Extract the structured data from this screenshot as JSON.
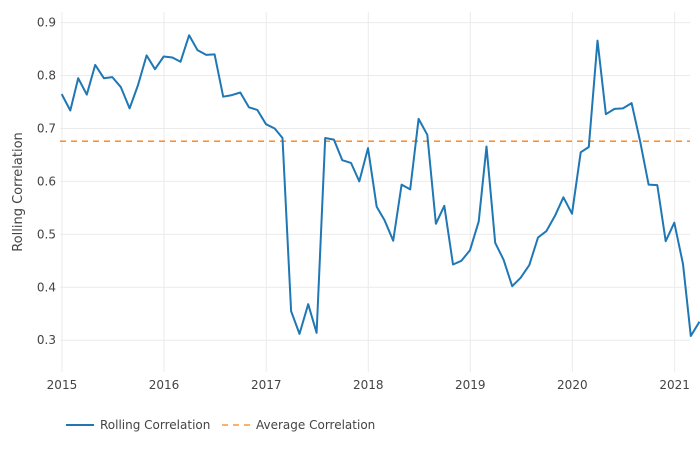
{
  "chart_data": {
    "type": "line",
    "ylabel": "Rolling Correlation",
    "xlabel": "",
    "xlim": [
      "2014-12-25",
      "2021-02-25"
    ],
    "ylim": [
      0.24,
      0.92
    ],
    "grid": true,
    "legend_position": "bottom-left",
    "x_ticks": [
      "2015",
      "2016",
      "2017",
      "2018",
      "2019",
      "2020",
      "2021"
    ],
    "y_ticks": [
      0.3,
      0.4,
      0.5,
      0.6,
      0.7,
      0.8,
      0.9
    ],
    "series": [
      {
        "name": "Rolling Correlation",
        "style": "solid",
        "color": "#1f77b4",
        "points": [
          [
            "2014-12-31",
            0.765
          ],
          [
            "2015-01-31",
            0.734
          ],
          [
            "2015-02-28",
            0.795
          ],
          [
            "2015-03-31",
            0.764
          ],
          [
            "2015-04-30",
            0.82
          ],
          [
            "2015-05-31",
            0.795
          ],
          [
            "2015-06-30",
            0.797
          ],
          [
            "2015-07-31",
            0.778
          ],
          [
            "2015-08-31",
            0.738
          ],
          [
            "2015-09-30",
            0.782
          ],
          [
            "2015-10-31",
            0.838
          ],
          [
            "2015-11-30",
            0.812
          ],
          [
            "2015-12-31",
            0.836
          ],
          [
            "2016-01-31",
            0.834
          ],
          [
            "2016-02-29",
            0.826
          ],
          [
            "2016-03-31",
            0.876
          ],
          [
            "2016-04-30",
            0.848
          ],
          [
            "2016-05-31",
            0.839
          ],
          [
            "2016-06-30",
            0.84
          ],
          [
            "2016-07-31",
            0.76
          ],
          [
            "2016-08-31",
            0.763
          ],
          [
            "2016-09-30",
            0.768
          ],
          [
            "2016-10-31",
            0.74
          ],
          [
            "2016-11-30",
            0.735
          ],
          [
            "2016-12-31",
            0.708
          ],
          [
            "2017-01-31",
            0.7
          ],
          [
            "2017-02-28",
            0.682
          ],
          [
            "2017-03-31",
            0.355
          ],
          [
            "2017-04-30",
            0.312
          ],
          [
            "2017-05-31",
            0.368
          ],
          [
            "2017-06-30",
            0.314
          ],
          [
            "2017-07-31",
            0.682
          ],
          [
            "2017-08-31",
            0.679
          ],
          [
            "2017-09-30",
            0.64
          ],
          [
            "2017-10-31",
            0.635
          ],
          [
            "2017-11-30",
            0.6
          ],
          [
            "2017-12-31",
            0.663
          ],
          [
            "2018-01-31",
            0.552
          ],
          [
            "2018-02-28",
            0.527
          ],
          [
            "2018-03-31",
            0.488
          ],
          [
            "2018-04-30",
            0.594
          ],
          [
            "2018-05-31",
            0.585
          ],
          [
            "2018-06-30",
            0.718
          ],
          [
            "2018-07-31",
            0.688
          ],
          [
            "2018-08-31",
            0.52
          ],
          [
            "2018-09-30",
            0.554
          ],
          [
            "2018-10-31",
            0.443
          ],
          [
            "2018-11-30",
            0.45
          ],
          [
            "2018-12-31",
            0.47
          ],
          [
            "2019-01-31",
            0.524
          ],
          [
            "2019-02-28",
            0.666
          ],
          [
            "2019-03-31",
            0.484
          ],
          [
            "2019-04-30",
            0.452
          ],
          [
            "2019-05-31",
            0.402
          ],
          [
            "2019-06-30",
            0.418
          ],
          [
            "2019-07-31",
            0.442
          ],
          [
            "2019-08-31",
            0.494
          ],
          [
            "2019-09-30",
            0.506
          ],
          [
            "2019-10-31",
            0.535
          ],
          [
            "2019-11-30",
            0.57
          ],
          [
            "2019-12-31",
            0.539
          ],
          [
            "2020-01-31",
            0.655
          ],
          [
            "2020-02-29",
            0.665
          ],
          [
            "2020-03-31",
            0.866
          ],
          [
            "2020-04-30",
            0.727
          ],
          [
            "2020-05-31",
            0.737
          ],
          [
            "2020-06-30",
            0.738
          ],
          [
            "2020-07-31",
            0.748
          ],
          [
            "2020-08-31",
            0.675
          ],
          [
            "2020-09-30",
            0.594
          ],
          [
            "2020-10-31",
            0.593
          ],
          [
            "2020-11-30",
            0.487
          ],
          [
            "2020-12-31",
            0.522
          ],
          [
            "2021-01-31",
            0.444
          ],
          [
            "2021-02-28",
            0.308
          ],
          [
            "2021-03-31",
            0.335
          ]
        ]
      },
      {
        "name": "Average Correlation",
        "style": "dashed",
        "color": "#ff7f0e",
        "value": 0.676
      }
    ]
  }
}
